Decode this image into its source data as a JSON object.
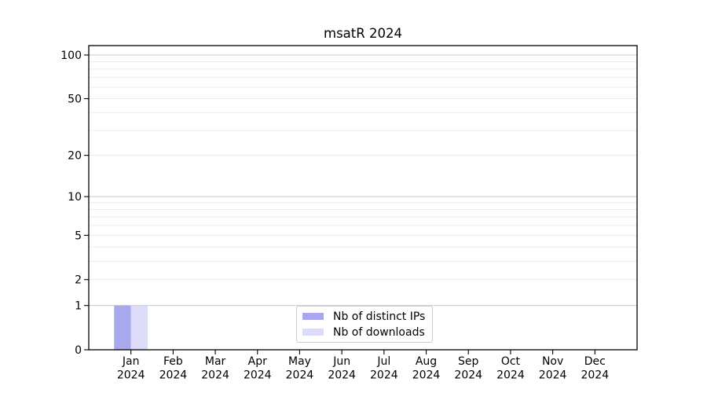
{
  "chart_data": {
    "type": "bar",
    "title": "msatR 2024",
    "categories": [
      "Jan 2024",
      "Feb 2024",
      "Mar 2024",
      "Apr 2024",
      "May 2024",
      "Jun 2024",
      "Jul 2024",
      "Aug 2024",
      "Sep 2024",
      "Oct 2024",
      "Nov 2024",
      "Dec 2024"
    ],
    "series": [
      {
        "name": "Nb of distinct IPs",
        "color": "#a8a8ef",
        "values": [
          1,
          0,
          0,
          0,
          0,
          0,
          0,
          0,
          0,
          0,
          0,
          0
        ]
      },
      {
        "name": "Nb of downloads",
        "color": "#dcdcf8",
        "values": [
          1,
          0,
          0,
          0,
          0,
          0,
          0,
          0,
          0,
          0,
          0,
          0
        ]
      }
    ],
    "xlabel": "",
    "ylabel": "",
    "yscale": "log1p",
    "ylim": [
      0,
      116
    ],
    "y_ticks": [
      0,
      1,
      2,
      5,
      10,
      20,
      50,
      100
    ],
    "gridlines": {
      "major": [
        1,
        10,
        100
      ],
      "minor": [
        2,
        3,
        4,
        5,
        6,
        7,
        8,
        9,
        20,
        30,
        40,
        50,
        60,
        70,
        80,
        90
      ]
    },
    "grid": "horizontal",
    "legend_position": "lower center"
  },
  "colors": {
    "spine": "#000000",
    "grid_major": "#c9c9c9",
    "grid_minor": "#ebebeb",
    "background": "#ffffff",
    "legend_border": "#cccccc"
  }
}
